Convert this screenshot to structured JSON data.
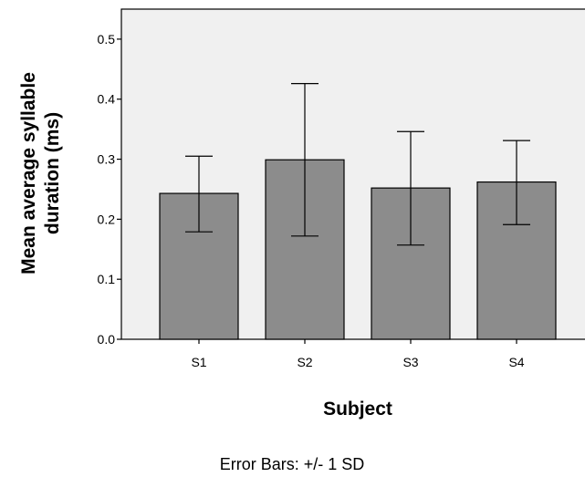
{
  "chart_data": {
    "type": "bar",
    "categories": [
      "S1",
      "S2",
      "S3",
      "S4"
    ],
    "values": [
      0.243,
      0.299,
      0.252,
      0.262
    ],
    "error_low": [
      0.179,
      0.172,
      0.157,
      0.191
    ],
    "error_high": [
      0.305,
      0.426,
      0.346,
      0.331
    ],
    "xlabel": "Subject",
    "ylabel_line1": "Mean average syllable",
    "ylabel_line2": "duration (ms)",
    "ylim": [
      0,
      0.55
    ],
    "yticks": [
      "0.0",
      "0.1",
      "0.2",
      "0.3",
      "0.4",
      "0.5"
    ],
    "ytick_values": [
      0,
      0.1,
      0.2,
      0.3,
      0.4,
      0.5
    ],
    "footnote": "Error Bars: +/- 1 SD",
    "bar_color": "#8c8c8c",
    "plot_background": "#f0f0f0",
    "grid": false
  }
}
